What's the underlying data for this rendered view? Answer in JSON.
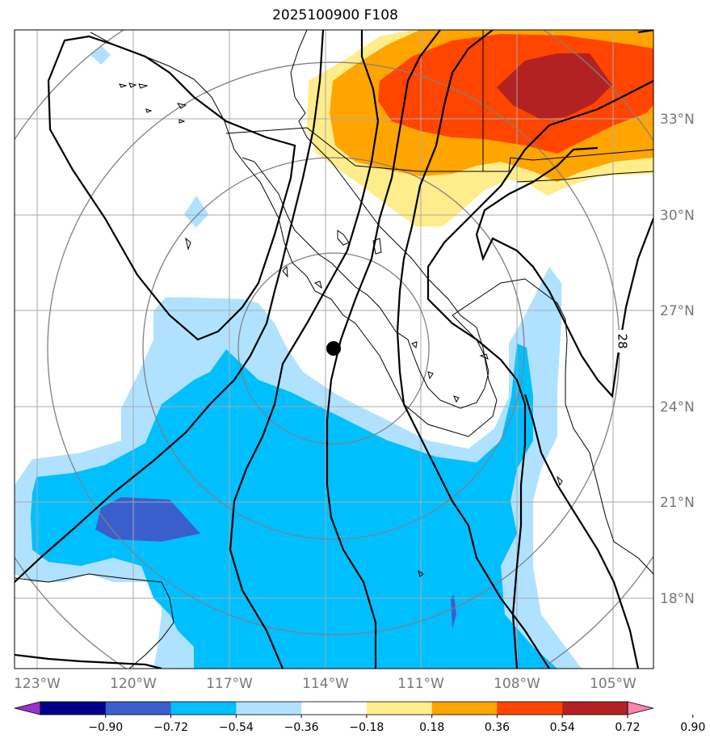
{
  "title": "2025100900 F108",
  "lat_labels": [
    "33°N",
    "30°N",
    "27°N",
    "24°N",
    "21°N",
    "18°N"
  ],
  "lon_labels": [
    "123°W",
    "120°W",
    "117°W",
    "114°W",
    "111°W",
    "108°W",
    "105°W"
  ],
  "contour_label": "28",
  "colorbar": {
    "labels": [
      "−0.90",
      "−0.72",
      "−0.54",
      "−0.36",
      "−0.18",
      "0.18",
      "0.36",
      "0.54",
      "0.72",
      "0.90"
    ],
    "colors": [
      "#9932CC",
      "#00008B",
      "#3A5FCD",
      "#00BFFF",
      "#B0E2FF",
      "#FFFFFF",
      "#FFEC8B",
      "#FFA500",
      "#FF4500",
      "#B22222",
      "#FF82AB"
    ]
  }
}
